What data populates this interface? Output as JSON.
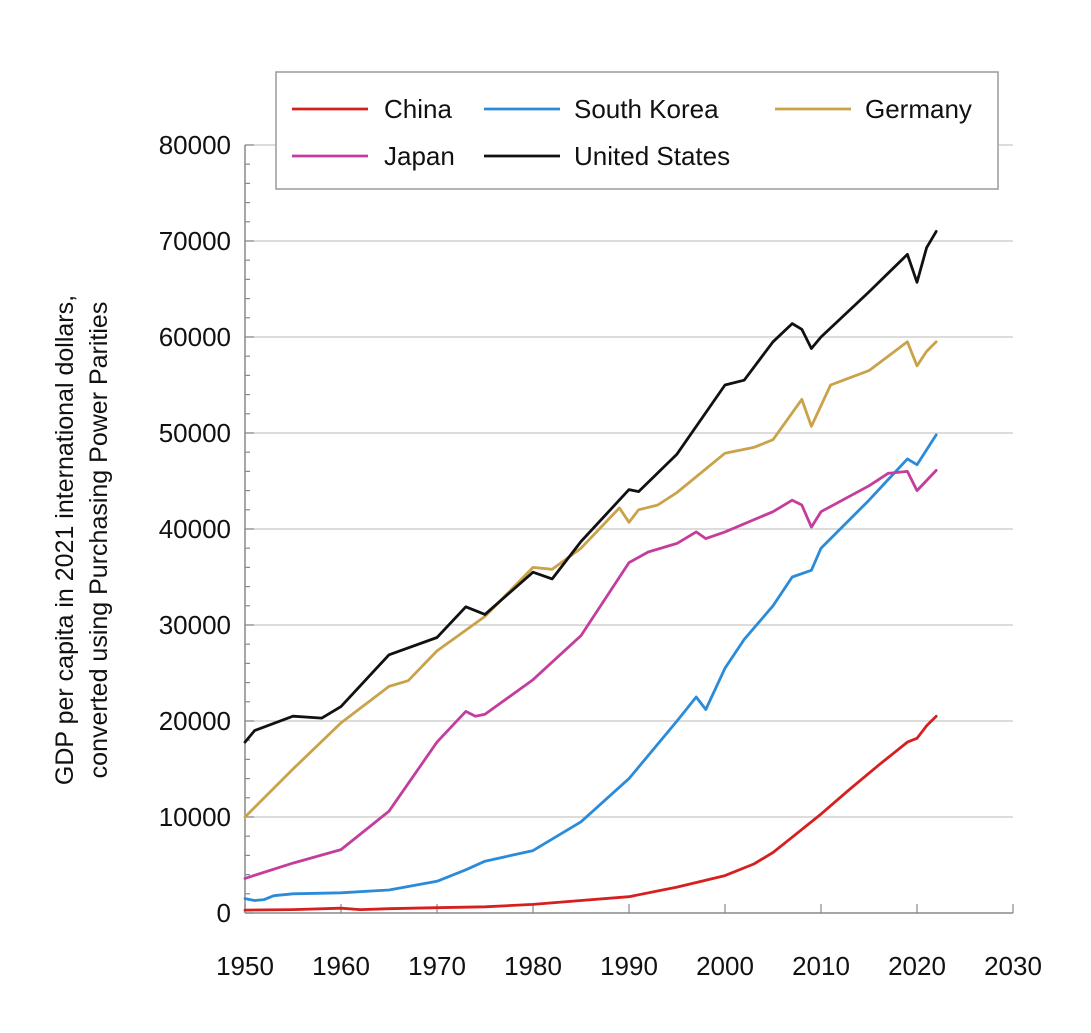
{
  "chart_data": {
    "type": "line",
    "title": "",
    "xlabel": "",
    "ylabel": "GDP per capita in 2021 international dollars, converted using Purchasing Power Parities",
    "ylabel_lines": [
      "GDP per capita in 2021 international dollars,",
      "converted using Purchasing Power Parities"
    ],
    "xlim": [
      1950,
      2030
    ],
    "ylim": [
      0,
      80000
    ],
    "x_ticks": [
      1950,
      1960,
      1970,
      1980,
      1990,
      2000,
      2010,
      2020,
      2030
    ],
    "y_ticks": [
      0,
      10000,
      20000,
      30000,
      40000,
      50000,
      60000,
      70000,
      80000
    ],
    "grid": "horizontal",
    "legend_position": "top",
    "legend_order": [
      "China",
      "South Korea",
      "Germany",
      "Japan",
      "United States"
    ],
    "series": [
      {
        "name": "China",
        "color": "#d61f1f",
        "x": [
          1950,
          1955,
          1960,
          1962,
          1965,
          1970,
          1975,
          1980,
          1985,
          1990,
          1995,
          2000,
          2003,
          2005,
          2007,
          2010,
          2013,
          2016,
          2019,
          2020,
          2021,
          2022
        ],
        "values": [
          300,
          350,
          500,
          350,
          450,
          550,
          650,
          900,
          1300,
          1700,
          2700,
          3900,
          5100,
          6300,
          7900,
          10300,
          12900,
          15400,
          17800,
          18200,
          19500,
          20500
        ]
      },
      {
        "name": "South Korea",
        "color": "#2b8bd9",
        "x": [
          1950,
          1951,
          1952,
          1953,
          1955,
          1960,
          1965,
          1970,
          1973,
          1975,
          1980,
          1985,
          1990,
          1995,
          1997,
          1998,
          2000,
          2002,
          2005,
          2007,
          2009,
          2010,
          2015,
          2019,
          2020,
          2022
        ],
        "values": [
          1500,
          1300,
          1400,
          1800,
          2000,
          2100,
          2400,
          3300,
          4500,
          5400,
          6500,
          9500,
          14000,
          20000,
          22500,
          21200,
          25500,
          28500,
          32000,
          35000,
          35700,
          38000,
          43000,
          47300,
          46700,
          49800
        ]
      },
      {
        "name": "Germany",
        "color": "#c9a24a",
        "x": [
          1950,
          1955,
          1960,
          1965,
          1967,
          1970,
          1975,
          1980,
          1982,
          1985,
          1989,
          1990,
          1991,
          1993,
          1995,
          2000,
          2003,
          2005,
          2008,
          2009,
          2011,
          2015,
          2019,
          2020,
          2021,
          2022
        ],
        "values": [
          10000,
          15000,
          19800,
          23600,
          24200,
          27300,
          30900,
          36000,
          35800,
          38000,
          42200,
          40700,
          42000,
          42500,
          43800,
          47900,
          48500,
          49300,
          53500,
          50700,
          55000,
          56500,
          59500,
          57000,
          58500,
          59500
        ]
      },
      {
        "name": "Japan",
        "color": "#c43d9c",
        "x": [
          1950,
          1955,
          1960,
          1965,
          1970,
          1973,
          1974,
          1975,
          1980,
          1985,
          1990,
          1992,
          1995,
          1997,
          1998,
          2000,
          2005,
          2007,
          2008,
          2009,
          2010,
          2015,
          2017,
          2019,
          2020,
          2022
        ],
        "values": [
          3600,
          5200,
          6600,
          10600,
          17800,
          21000,
          20500,
          20700,
          24300,
          28900,
          36500,
          37600,
          38500,
          39700,
          39000,
          39700,
          41800,
          43000,
          42500,
          40200,
          41800,
          44500,
          45800,
          46000,
          44000,
          46100
        ]
      },
      {
        "name": "United States",
        "color": "#111111",
        "x": [
          1950,
          1951,
          1955,
          1958,
          1960,
          1965,
          1970,
          1973,
          1975,
          1980,
          1982,
          1985,
          1990,
          1991,
          1995,
          2000,
          2002,
          2005,
          2007,
          2008,
          2009,
          2010,
          2015,
          2019,
          2020,
          2021,
          2022
        ],
        "values": [
          17800,
          19000,
          20500,
          20300,
          21500,
          26900,
          28700,
          31900,
          31100,
          35500,
          34800,
          38700,
          44100,
          43900,
          47800,
          55000,
          55500,
          59500,
          61400,
          60800,
          58800,
          60000,
          64700,
          68600,
          65700,
          69300,
          71000
        ]
      }
    ]
  }
}
